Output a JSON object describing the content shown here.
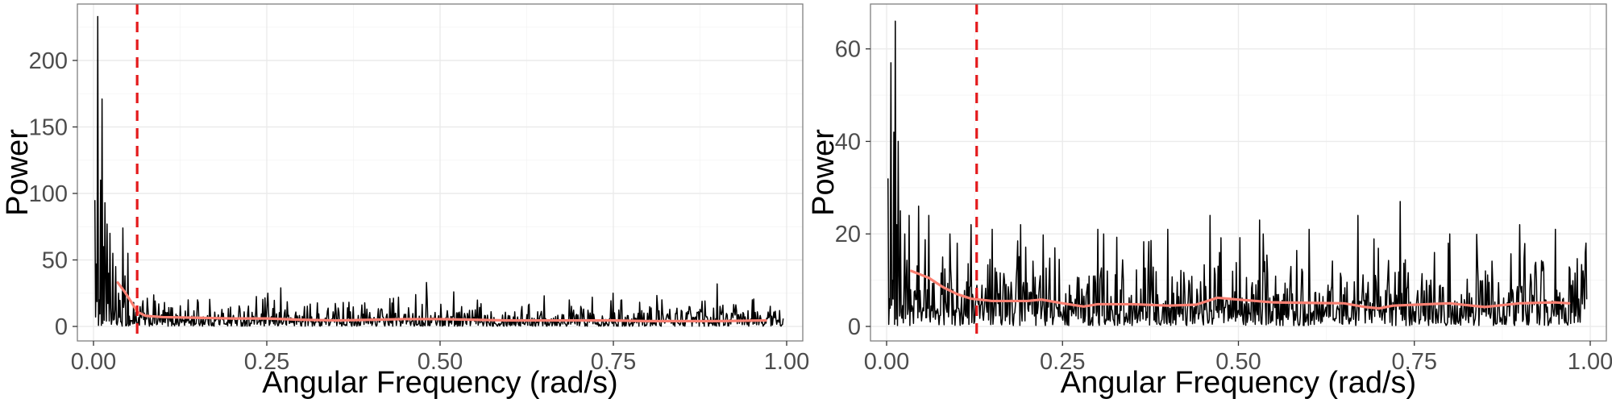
{
  "colors": {
    "series": "#000000",
    "smooth": "#fa8072",
    "cutoff": "#e41a1c",
    "grid": "#ebebeb",
    "border": "#7f7f7f"
  },
  "chart_data": [
    {
      "type": "line",
      "xlabel": "Angular Frequency (rad/s)",
      "ylabel": "Power",
      "xlim": [
        0,
        1
      ],
      "ylim": [
        0,
        240
      ],
      "xticks": [
        "0.00",
        "0.25",
        "0.50",
        "0.75",
        "1.00"
      ],
      "yticks": [
        "0",
        "50",
        "100",
        "150",
        "200"
      ],
      "grid": true,
      "cutoff_x": 0.063,
      "smooth_trend": [
        [
          0.035,
          33
        ],
        [
          0.045,
          26
        ],
        [
          0.055,
          18
        ],
        [
          0.063,
          11
        ],
        [
          0.075,
          8
        ],
        [
          0.1,
          7
        ],
        [
          0.15,
          6.5
        ],
        [
          0.2,
          6
        ],
        [
          0.25,
          6
        ],
        [
          0.3,
          5
        ],
        [
          0.35,
          4.5
        ],
        [
          0.4,
          5
        ],
        [
          0.45,
          5.5
        ],
        [
          0.5,
          5.5
        ],
        [
          0.55,
          5
        ],
        [
          0.6,
          4.5
        ],
        [
          0.65,
          4.5
        ],
        [
          0.7,
          4.5
        ],
        [
          0.75,
          4.5
        ],
        [
          0.8,
          4
        ],
        [
          0.85,
          4
        ],
        [
          0.9,
          4
        ],
        [
          0.97,
          4.5
        ]
      ],
      "peaks": [
        [
          0.002,
          95
        ],
        [
          0.004,
          47
        ],
        [
          0.006,
          233
        ],
        [
          0.008,
          20
        ],
        [
          0.01,
          110
        ],
        [
          0.012,
          171
        ],
        [
          0.014,
          60
        ],
        [
          0.016,
          93
        ],
        [
          0.018,
          38
        ],
        [
          0.02,
          77
        ],
        [
          0.022,
          40
        ],
        [
          0.024,
          70
        ],
        [
          0.028,
          55
        ],
        [
          0.032,
          45
        ],
        [
          0.036,
          25
        ],
        [
          0.042,
          74
        ],
        [
          0.046,
          38
        ],
        [
          0.05,
          55
        ],
        [
          0.058,
          18
        ],
        [
          0.07,
          15
        ],
        [
          0.09,
          10
        ],
        [
          0.15,
          20
        ],
        [
          0.27,
          29
        ],
        [
          0.36,
          18
        ],
        [
          0.44,
          22
        ],
        [
          0.48,
          33
        ],
        [
          0.52,
          26
        ],
        [
          0.65,
          23
        ],
        [
          0.72,
          22
        ],
        [
          0.75,
          25
        ],
        [
          0.82,
          20
        ],
        [
          0.9,
          32
        ],
        [
          0.95,
          20
        ],
        [
          0.99,
          12
        ]
      ],
      "noise": {
        "n": 960,
        "baseline": 6,
        "scale": 8,
        "max": 26
      }
    },
    {
      "type": "line",
      "xlabel": "Angular Frequency (rad/s)",
      "ylabel": "Power",
      "xlim": [
        0,
        1
      ],
      "ylim": [
        0,
        69
      ],
      "xticks": [
        "0.00",
        "0.25",
        "0.50",
        "0.75",
        "1.00"
      ],
      "yticks": [
        "0",
        "20",
        "40",
        "60"
      ],
      "grid": true,
      "cutoff_x": 0.128,
      "smooth_trend": [
        [
          0.035,
          12
        ],
        [
          0.06,
          10.5
        ],
        [
          0.08,
          8.5
        ],
        [
          0.1,
          7
        ],
        [
          0.12,
          6
        ],
        [
          0.15,
          5.5
        ],
        [
          0.2,
          5.5
        ],
        [
          0.22,
          5.8
        ],
        [
          0.25,
          5
        ],
        [
          0.28,
          4.3
        ],
        [
          0.3,
          4.8
        ],
        [
          0.35,
          4.8
        ],
        [
          0.4,
          4.5
        ],
        [
          0.44,
          4.7
        ],
        [
          0.47,
          6.2
        ],
        [
          0.5,
          5.8
        ],
        [
          0.55,
          5.2
        ],
        [
          0.6,
          5.1
        ],
        [
          0.65,
          5
        ],
        [
          0.68,
          4.2
        ],
        [
          0.7,
          3.9
        ],
        [
          0.72,
          4.5
        ],
        [
          0.8,
          5
        ],
        [
          0.85,
          4.2
        ],
        [
          0.9,
          5
        ],
        [
          0.95,
          5.2
        ],
        [
          0.97,
          5
        ]
      ],
      "peaks": [
        [
          0.002,
          32
        ],
        [
          0.004,
          6
        ],
        [
          0.006,
          57
        ],
        [
          0.008,
          10
        ],
        [
          0.01,
          42
        ],
        [
          0.012,
          66
        ],
        [
          0.014,
          22
        ],
        [
          0.016,
          40
        ],
        [
          0.018,
          11
        ],
        [
          0.02,
          25
        ],
        [
          0.026,
          20
        ],
        [
          0.032,
          24
        ],
        [
          0.045,
          26
        ],
        [
          0.06,
          24
        ],
        [
          0.08,
          15
        ],
        [
          0.09,
          20
        ],
        [
          0.1,
          18
        ],
        [
          0.12,
          22
        ],
        [
          0.15,
          21
        ],
        [
          0.19,
          22
        ],
        [
          0.3,
          21
        ],
        [
          0.4,
          21
        ],
        [
          0.46,
          24
        ],
        [
          0.53,
          23
        ],
        [
          0.6,
          21
        ],
        [
          0.67,
          24
        ],
        [
          0.73,
          27
        ],
        [
          0.8,
          20
        ],
        [
          0.9,
          22
        ],
        [
          0.95,
          21
        ],
        [
          0.99,
          12
        ]
      ],
      "noise": {
        "n": 960,
        "baseline": 5,
        "scale": 5.5,
        "max": 20
      }
    }
  ]
}
